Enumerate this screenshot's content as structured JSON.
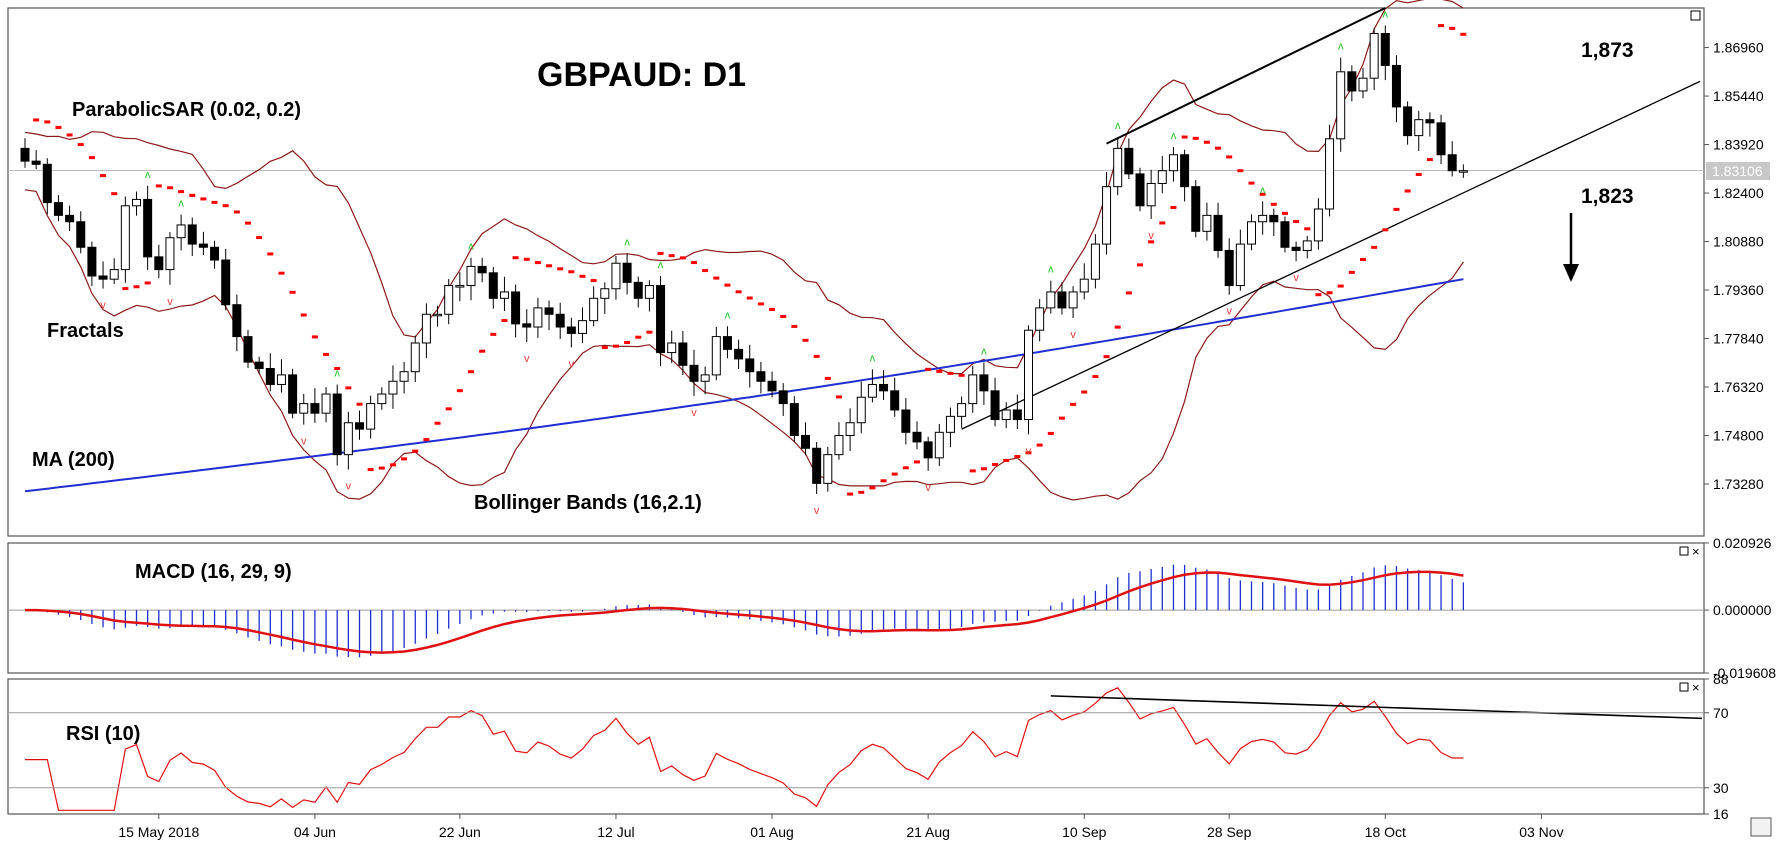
{
  "title": "GBPAUD: D1",
  "annotations": {
    "parabolic_sar": "ParabolicSAR (0.02, 0.2)",
    "fractals": "Fractals",
    "ma": "MA (200)",
    "bollinger": "Bollinger Bands (16,2.1)",
    "macd": "MACD (16, 29, 9)",
    "rsi": "RSI (10)",
    "level_high": "1,873",
    "level_low": "1,823"
  },
  "colors": {
    "candle_up": "#ffffff",
    "candle_down": "#000000",
    "bollinger": "#8b1a1a",
    "ma": "#1f2fd1",
    "sar": "#ff0000",
    "fractal_up": "#1fc11f",
    "fractal_down": "#e23a3a",
    "macd_histogram": "#1f2fd1",
    "macd_signal": "#e01010",
    "rsi": "#e01010",
    "trendline": "#000000"
  },
  "chart_data": [
    {
      "type": "candlestick",
      "panel": "price",
      "title": "GBPAUD: D1",
      "current_price": "1.83106",
      "y_ticks": [
        "1.86960",
        "1.85440",
        "1.83920",
        "1.82400",
        "1.80880",
        "1.79360",
        "1.77840",
        "1.76320",
        "1.74800",
        "1.73280"
      ],
      "ylim": [
        1.7165,
        1.882
      ],
      "x_ticks": [
        "15 May 2018",
        "04 Jun",
        "22 Jun",
        "12 Jul",
        "01 Aug",
        "21 Aug",
        "10 Sep",
        "28 Sep",
        "18 Oct",
        "03 Nov"
      ],
      "close": [
        1.834,
        1.833,
        1.821,
        1.817,
        1.815,
        1.807,
        1.798,
        1.797,
        1.8,
        1.82,
        1.822,
        1.804,
        1.8,
        1.81,
        1.814,
        1.808,
        1.807,
        1.803,
        1.789,
        1.779,
        1.771,
        1.769,
        1.764,
        1.767,
        1.755,
        1.758,
        1.755,
        1.761,
        1.742,
        1.752,
        1.75,
        1.758,
        1.761,
        1.765,
        1.768,
        1.777,
        1.786,
        1.786,
        1.795,
        1.795,
        1.801,
        1.799,
        1.791,
        1.793,
        1.783,
        1.782,
        1.788,
        1.786,
        1.782,
        1.78,
        1.784,
        1.791,
        1.794,
        1.802,
        1.796,
        1.791,
        1.795,
        1.774,
        1.777,
        1.77,
        1.765,
        1.767,
        1.779,
        1.775,
        1.772,
        1.768,
        1.765,
        1.762,
        1.758,
        1.748,
        1.744,
        1.733,
        1.742,
        1.748,
        1.752,
        1.76,
        1.764,
        1.762,
        1.756,
        1.749,
        1.746,
        1.741,
        1.749,
        1.754,
        1.758,
        1.767,
        1.762,
        1.753,
        1.756,
        1.753,
        1.781,
        1.788,
        1.793,
        1.788,
        1.793,
        1.797,
        1.808,
        1.826,
        1.838,
        1.83,
        1.82,
        1.827,
        1.831,
        1.836,
        1.826,
        1.812,
        1.817,
        1.806,
        1.795,
        1.808,
        1.815,
        1.817,
        1.815,
        1.807,
        1.806,
        1.809,
        1.819,
        1.841,
        1.862,
        1.856,
        1.86,
        1.874,
        1.864,
        1.851,
        1.842,
        1.847,
        1.846,
        1.836,
        1.831,
        1.831
      ],
      "series": [
        {
          "name": "MA (200)"
        },
        {
          "name": "Bollinger Bands (16,2.1)"
        },
        {
          "name": "ParabolicSAR (0.02, 0.2)"
        },
        {
          "name": "Fractals"
        }
      ],
      "levels": [
        1.873,
        1.823
      ]
    },
    {
      "type": "macd",
      "panel": "macd",
      "name": "MACD (16, 29, 9)",
      "y_ticks": [
        "0.020926",
        "0.000000",
        "-0.019608"
      ],
      "ylim": [
        -0.0196,
        0.0209
      ]
    },
    {
      "type": "line",
      "panel": "rsi",
      "name": "RSI (10)",
      "y_ticks": [
        "88",
        "70",
        "30",
        "16"
      ],
      "ylim": [
        16,
        88
      ]
    }
  ]
}
